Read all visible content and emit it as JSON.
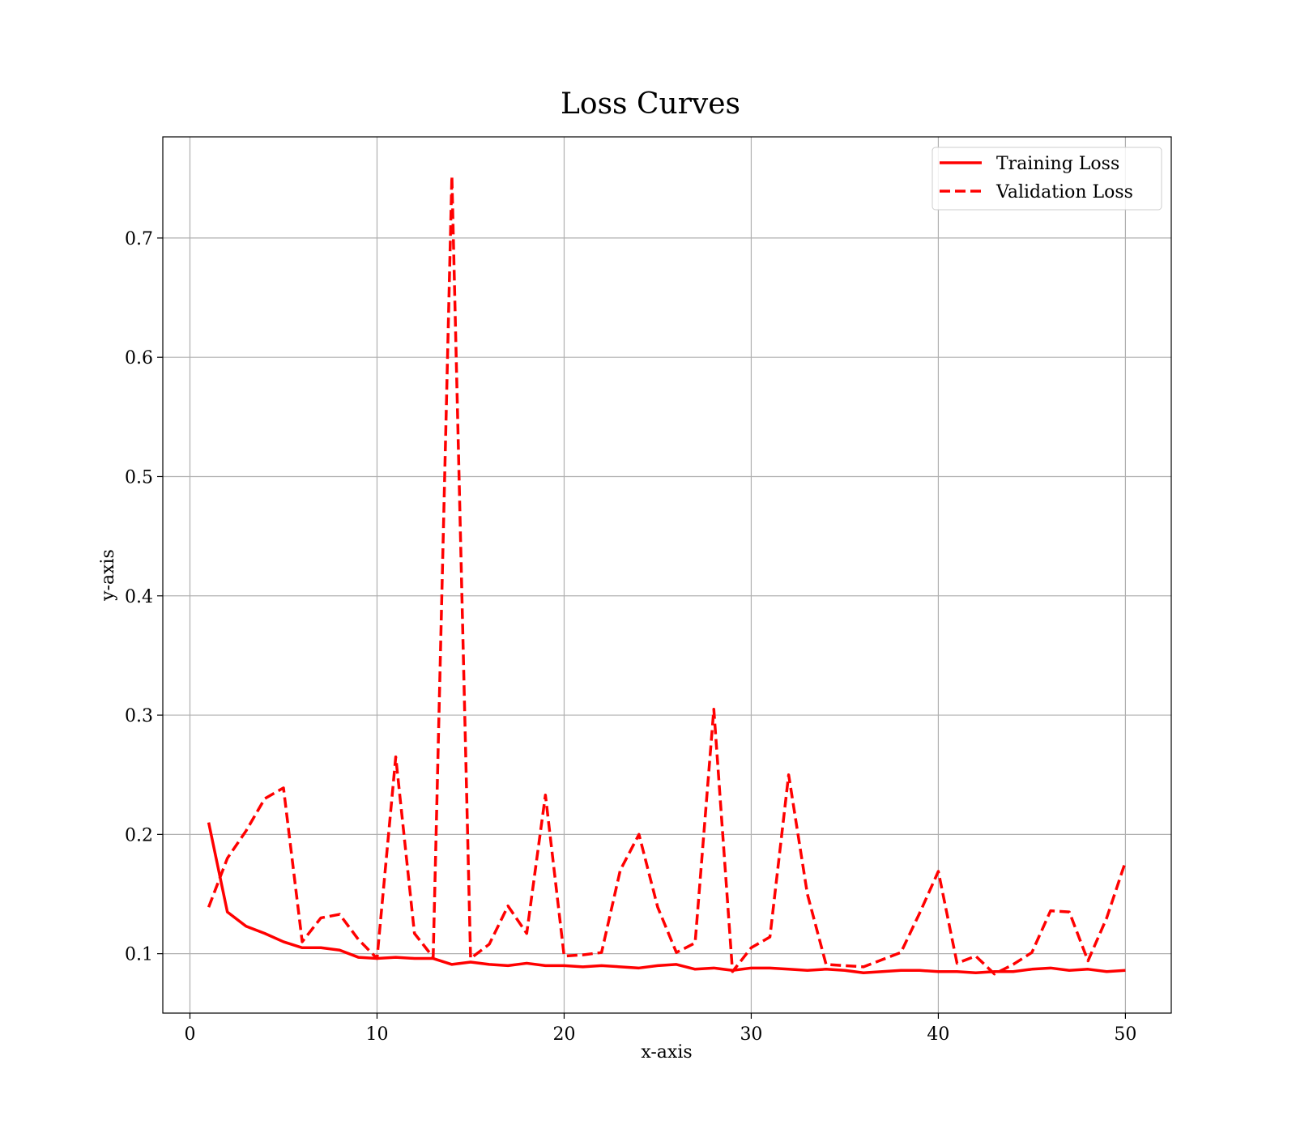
{
  "chart_data": {
    "type": "line",
    "title": "Loss Curves",
    "xlabel": "x-axis",
    "ylabel": "y-axis",
    "xlim": [
      -1.45,
      52.45
    ],
    "ylim": [
      0.0502,
      0.7848
    ],
    "xticks": [
      0,
      10,
      20,
      30,
      40,
      50
    ],
    "yticks": [
      0.1,
      0.2,
      0.3,
      0.4,
      0.5,
      0.6,
      0.7
    ],
    "grid": true,
    "legend_position": "top-right",
    "x": [
      1,
      2,
      3,
      4,
      5,
      6,
      7,
      8,
      9,
      10,
      11,
      12,
      13,
      14,
      15,
      16,
      17,
      18,
      19,
      20,
      21,
      22,
      23,
      24,
      25,
      26,
      27,
      28,
      29,
      30,
      31,
      32,
      33,
      34,
      35,
      36,
      37,
      38,
      39,
      40,
      41,
      42,
      43,
      44,
      45,
      46,
      47,
      48,
      49,
      50
    ],
    "series": [
      {
        "name": "Training Loss",
        "color": "#ff0000",
        "style": "solid",
        "values": [
          0.21,
          0.135,
          0.123,
          0.117,
          0.11,
          0.105,
          0.105,
          0.103,
          0.097,
          0.096,
          0.097,
          0.096,
          0.096,
          0.091,
          0.093,
          0.091,
          0.09,
          0.092,
          0.09,
          0.09,
          0.089,
          0.09,
          0.089,
          0.088,
          0.09,
          0.091,
          0.087,
          0.088,
          0.086,
          0.088,
          0.088,
          0.087,
          0.086,
          0.087,
          0.086,
          0.084,
          0.085,
          0.086,
          0.086,
          0.085,
          0.085,
          0.084,
          0.085,
          0.085,
          0.087,
          0.088,
          0.086,
          0.087,
          0.085,
          0.086
        ]
      },
      {
        "name": "Validation Loss",
        "color": "#ff0000",
        "style": "dashed",
        "values": [
          0.139,
          0.18,
          0.203,
          0.23,
          0.239,
          0.11,
          0.13,
          0.133,
          0.112,
          0.096,
          0.265,
          0.117,
          0.097,
          0.752,
          0.096,
          0.108,
          0.14,
          0.117,
          0.233,
          0.098,
          0.099,
          0.101,
          0.17,
          0.2,
          0.139,
          0.101,
          0.109,
          0.305,
          0.085,
          0.105,
          0.114,
          0.25,
          0.15,
          0.091,
          0.09,
          0.089,
          0.095,
          0.101,
          0.134,
          0.169,
          0.092,
          0.098,
          0.083,
          0.091,
          0.101,
          0.136,
          0.135,
          0.094,
          0.13,
          0.177
        ]
      }
    ]
  }
}
